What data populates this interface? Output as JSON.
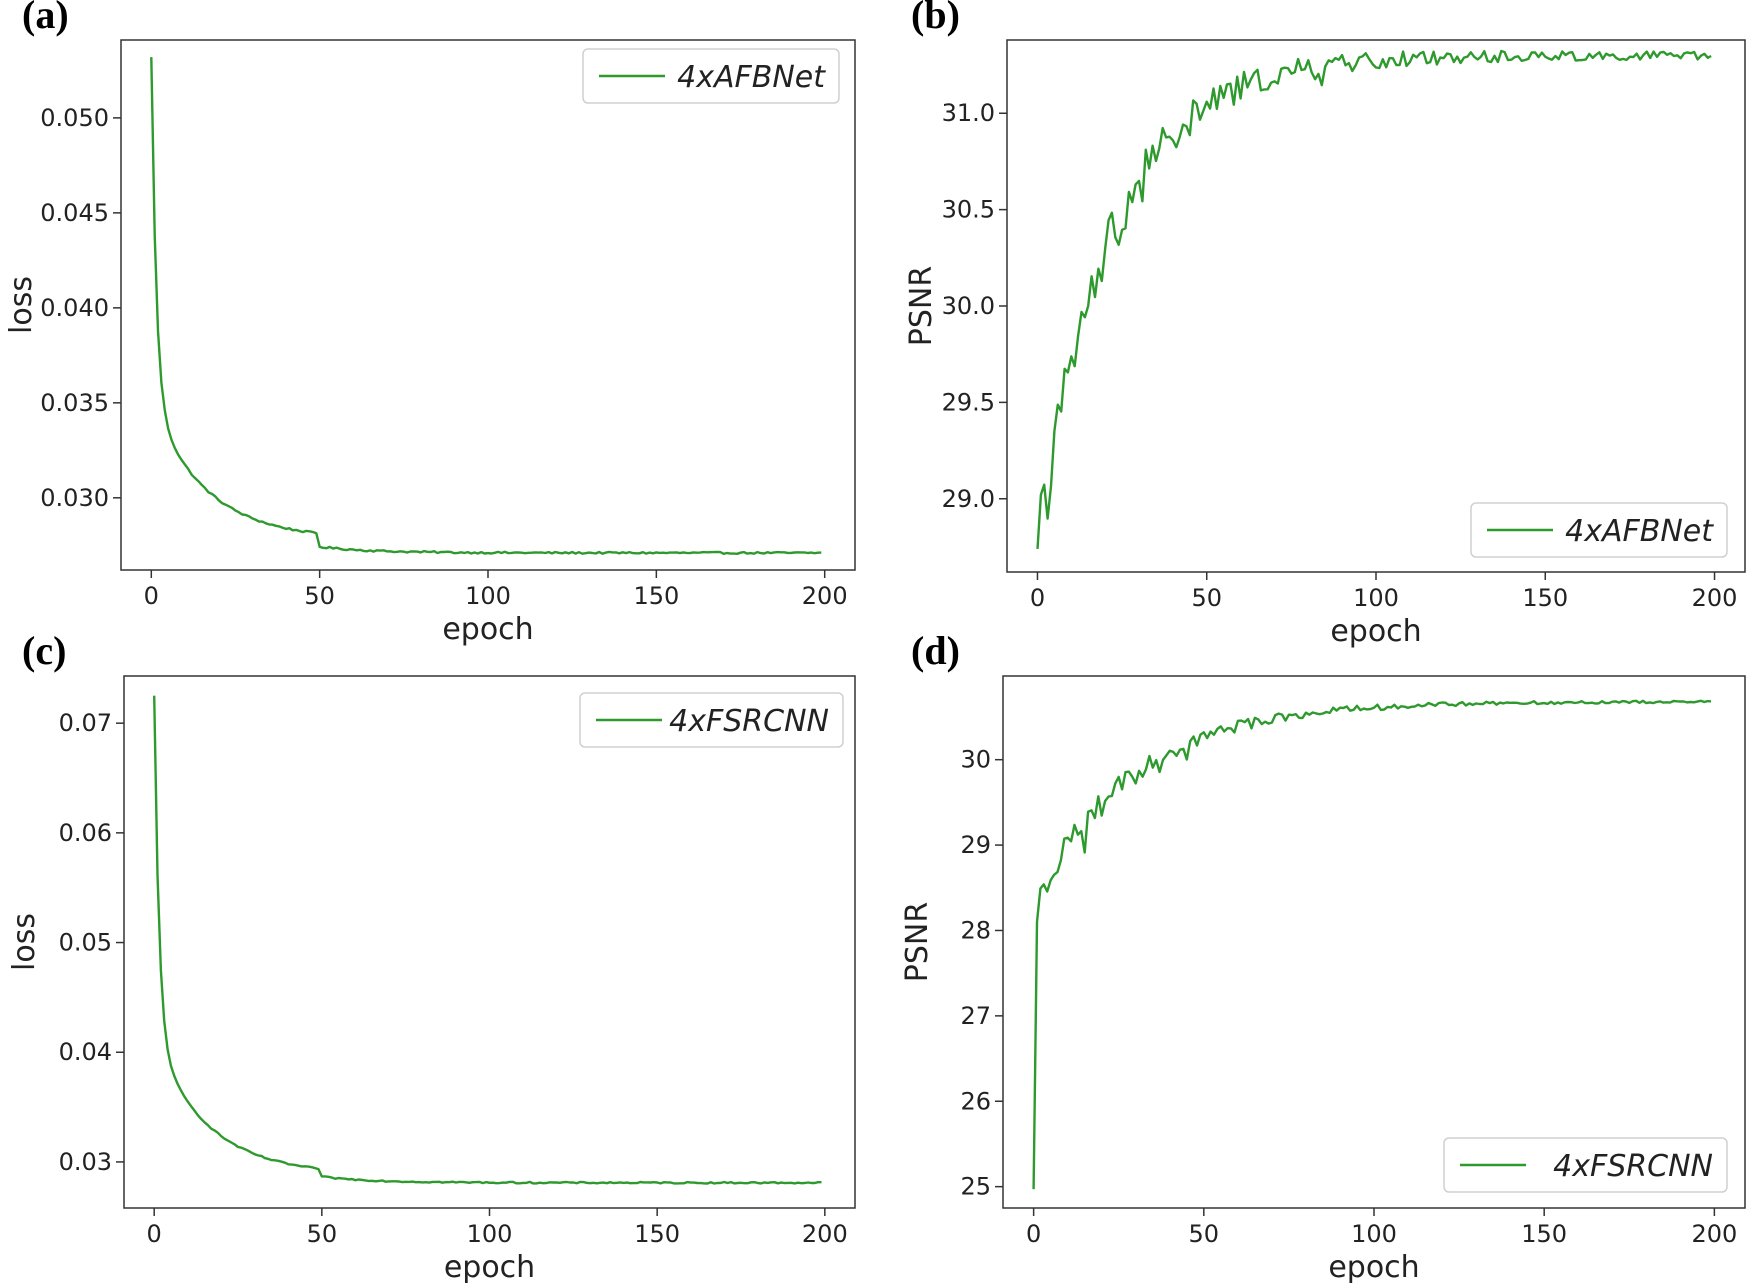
{
  "line_color": "#2e9a2e",
  "chart_data": [
    {
      "panel": "(a)",
      "type": "line",
      "xlabel": "epoch",
      "ylabel": "loss",
      "xlim": [
        -9,
        209
      ],
      "ylim": [
        0.0262,
        0.0541
      ],
      "xticks": [
        0,
        50,
        100,
        150,
        200
      ],
      "xtick_labels": [
        "0",
        "50",
        "100",
        "150",
        "200"
      ],
      "yticks": [
        0.03,
        0.035,
        0.04,
        0.045,
        0.05
      ],
      "ytick_labels": [
        "0.030",
        "0.035",
        "0.040",
        "0.045",
        "0.050"
      ],
      "legend": "4xAFBNet",
      "legend_loc": "upper right",
      "series": [
        {
          "name": "4xAFBNet",
          "kind": "loss",
          "start": 0.0532,
          "end": 0.0271,
          "jump": 0.0007,
          "noise": 5e-05
        }
      ]
    },
    {
      "panel": "(b)",
      "type": "line",
      "xlabel": "epoch",
      "ylabel": "PSNR",
      "xlim": [
        -9,
        209
      ],
      "ylim": [
        28.62,
        31.38
      ],
      "xticks": [
        0,
        50,
        100,
        150,
        200
      ],
      "xtick_labels": [
        "0",
        "50",
        "100",
        "150",
        "200"
      ],
      "yticks": [
        29.0,
        29.5,
        30.0,
        30.5,
        31.0
      ],
      "ytick_labels": [
        "29.0",
        "29.5",
        "30.0",
        "30.5",
        "31.0"
      ],
      "legend": "4xAFBNet",
      "legend_loc": "lower right",
      "series": [
        {
          "name": "4xAFBNet",
          "kind": "psnr",
          "start": 28.74,
          "plateau": 31.3,
          "tau": 22,
          "noise": 0.18
        }
      ]
    },
    {
      "panel": "(c)",
      "type": "line",
      "xlabel": "epoch",
      "ylabel": "loss",
      "xlim": [
        -9,
        209
      ],
      "ylim": [
        0.0258,
        0.0743
      ],
      "xticks": [
        0,
        50,
        100,
        150,
        200
      ],
      "xtick_labels": [
        "0",
        "50",
        "100",
        "150",
        "200"
      ],
      "yticks": [
        0.03,
        0.04,
        0.05,
        0.06,
        0.07
      ],
      "ytick_labels": [
        "0.03",
        "0.04",
        "0.05",
        "0.06",
        "0.07"
      ],
      "legend": "4xFSRCNN",
      "legend_loc": "upper right",
      "series": [
        {
          "name": "4xFSRCNN",
          "kind": "loss",
          "start": 0.0725,
          "end": 0.0281,
          "jump": 0.0007,
          "noise": 7e-05
        }
      ]
    },
    {
      "panel": "(d)",
      "type": "line",
      "xlabel": "epoch",
      "ylabel": "PSNR",
      "xlim": [
        -9,
        209
      ],
      "ylim": [
        24.75,
        30.98
      ],
      "xticks": [
        0,
        50,
        100,
        150,
        200
      ],
      "xtick_labels": [
        "0",
        "50",
        "100",
        "150",
        "200"
      ],
      "yticks": [
        25,
        26,
        27,
        28,
        29,
        30
      ],
      "ytick_labels": [
        "25",
        "26",
        "27",
        "28",
        "29",
        "30"
      ],
      "legend": "4xFSRCNN",
      "legend_loc": "lower right",
      "series": [
        {
          "name": "4xFSRCNN",
          "kind": "psnr2",
          "start": 24.97,
          "plateau": 30.68,
          "tau": 28,
          "noise": 0.22
        }
      ]
    }
  ]
}
